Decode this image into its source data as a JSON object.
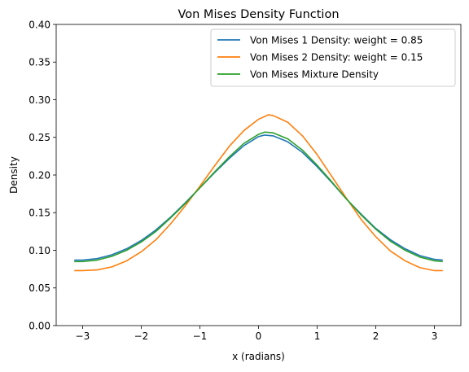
{
  "chart_data": {
    "type": "line",
    "title": "Von Mises Density Function",
    "xlabel": "x (radians)",
    "ylabel": "Density",
    "xlim": [
      -3.45,
      3.45
    ],
    "ylim": [
      0.0,
      0.4
    ],
    "x_ticks": [
      -3,
      -2,
      -1,
      0,
      1,
      2,
      3
    ],
    "x_tick_labels": [
      "−3",
      "−2",
      "−1",
      "0",
      "1",
      "2",
      "3"
    ],
    "y_ticks": [
      0.0,
      0.05,
      0.1,
      0.15,
      0.2,
      0.25,
      0.3,
      0.35,
      0.4
    ],
    "y_tick_labels": [
      "0.00",
      "0.05",
      "0.10",
      "0.15",
      "0.20",
      "0.25",
      "0.30",
      "0.35",
      "0.40"
    ],
    "grid": false,
    "legend_position": "upper right",
    "series": [
      {
        "name": "Von Mises 1 Density: weight = 0.85",
        "color": "#1f77b4",
        "x": [
          -3.1416,
          -3.0,
          -2.75,
          -2.5,
          -2.25,
          -2.0,
          -1.75,
          -1.5,
          -1.25,
          -1.0,
          -0.75,
          -0.5,
          -0.25,
          0.0,
          0.1,
          0.25,
          0.5,
          0.75,
          1.0,
          1.25,
          1.5,
          1.75,
          2.0,
          2.25,
          2.5,
          2.75,
          3.0,
          3.1416
        ],
        "y": [
          0.087,
          0.087,
          0.089,
          0.094,
          0.102,
          0.113,
          0.127,
          0.144,
          0.163,
          0.183,
          0.203,
          0.222,
          0.239,
          0.251,
          0.253,
          0.252,
          0.244,
          0.23,
          0.211,
          0.19,
          0.168,
          0.148,
          0.129,
          0.114,
          0.102,
          0.093,
          0.088,
          0.087
        ]
      },
      {
        "name": "Von Mises 2 Density: weight = 0.15",
        "color": "#ff7f0e",
        "x": [
          -3.1416,
          -3.0,
          -2.75,
          -2.5,
          -2.25,
          -2.0,
          -1.75,
          -1.5,
          -1.25,
          -1.0,
          -0.75,
          -0.5,
          -0.25,
          0.0,
          0.17,
          0.25,
          0.5,
          0.75,
          1.0,
          1.25,
          1.5,
          1.75,
          2.0,
          2.25,
          2.5,
          2.75,
          3.0,
          3.1416
        ],
        "y": [
          0.073,
          0.073,
          0.074,
          0.078,
          0.086,
          0.098,
          0.114,
          0.135,
          0.159,
          0.185,
          0.212,
          0.238,
          0.259,
          0.274,
          0.28,
          0.279,
          0.27,
          0.252,
          0.227,
          0.198,
          0.169,
          0.141,
          0.118,
          0.099,
          0.086,
          0.077,
          0.073,
          0.073
        ]
      },
      {
        "name": "Von Mises Mixture Density",
        "color": "#2ca02c",
        "x": [
          -3.1416,
          -3.0,
          -2.75,
          -2.5,
          -2.25,
          -2.0,
          -1.75,
          -1.5,
          -1.25,
          -1.0,
          -0.75,
          -0.5,
          -0.25,
          0.0,
          0.11,
          0.25,
          0.5,
          0.75,
          1.0,
          1.25,
          1.5,
          1.75,
          2.0,
          2.25,
          2.5,
          2.75,
          3.0,
          3.1416
        ],
        "y": [
          0.085,
          0.085,
          0.087,
          0.092,
          0.1,
          0.111,
          0.125,
          0.143,
          0.162,
          0.183,
          0.204,
          0.224,
          0.242,
          0.254,
          0.257,
          0.256,
          0.248,
          0.233,
          0.213,
          0.191,
          0.168,
          0.147,
          0.128,
          0.112,
          0.1,
          0.091,
          0.086,
          0.085
        ]
      }
    ]
  }
}
